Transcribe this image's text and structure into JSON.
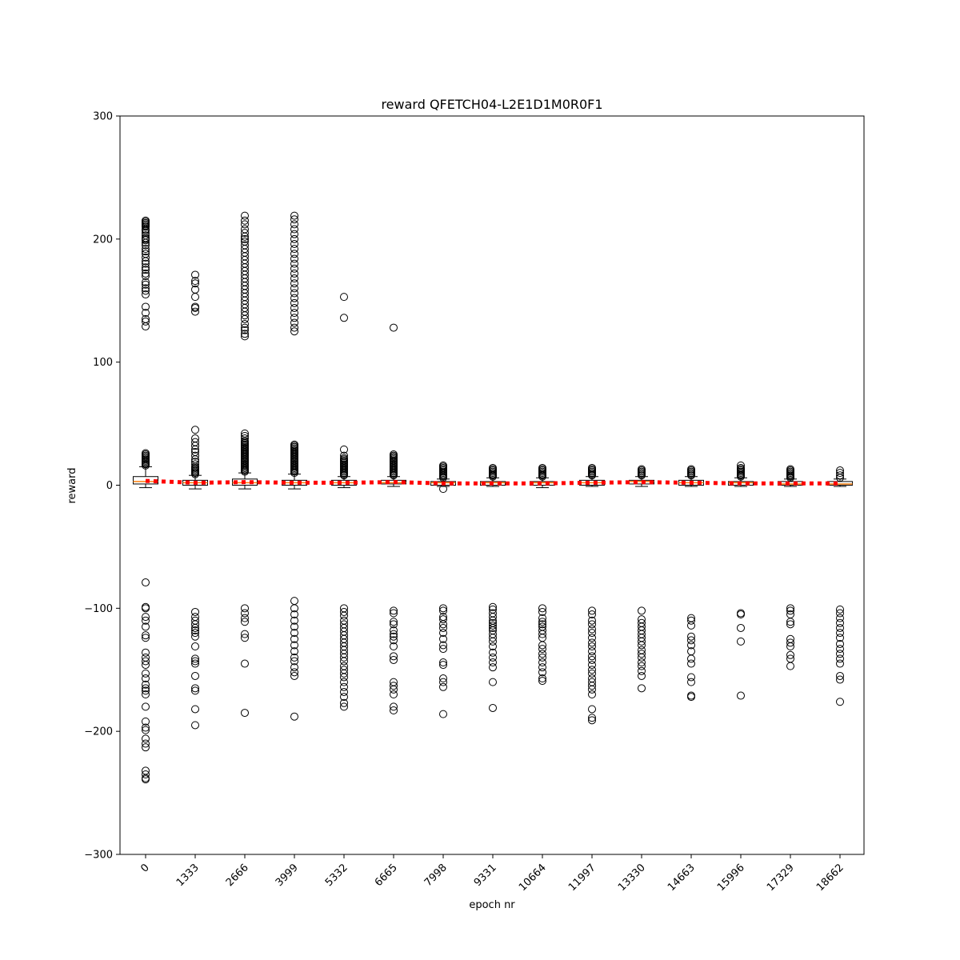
{
  "chart_data": {
    "type": "box",
    "title": "reward QFETCH04-L2E1D1M0R0F1",
    "xlabel": "epoch nr",
    "ylabel": "reward",
    "ylim": [
      -300,
      300
    ],
    "yticks": [
      -300,
      -200,
      -100,
      0,
      100,
      200,
      300
    ],
    "ytick_labels": [
      "−300",
      "−200",
      "−100",
      "0",
      "100",
      "200",
      "300"
    ],
    "categories": [
      "0",
      "1333",
      "2666",
      "3999",
      "5332",
      "6665",
      "7998",
      "9331",
      "10664",
      "11997",
      "13330",
      "14663",
      "15996",
      "17329",
      "18662"
    ],
    "colors": {
      "box": "#000000",
      "median": "#ff7f0e",
      "mean_line": "#ff0000"
    },
    "boxes": [
      {
        "q1": 1,
        "median": 3,
        "q3": 7,
        "whislo": -2,
        "whishi": 15,
        "mean": 3.5,
        "outliers": [
          16,
          17,
          18,
          19,
          20,
          21,
          22,
          23,
          24,
          25,
          26,
          129,
          133,
          135,
          140,
          145,
          155,
          158,
          160,
          163,
          165,
          170,
          172,
          175,
          177,
          180,
          182,
          185,
          188,
          190,
          192,
          195,
          197,
          199,
          200,
          201,
          203,
          205,
          207,
          208,
          210,
          211,
          212,
          213,
          214,
          215,
          -79,
          -99,
          -100,
          -107,
          -110,
          -115,
          -122,
          -124,
          -136,
          -140,
          -143,
          -146,
          -153,
          -157,
          -162,
          -165,
          -167,
          -170,
          -180,
          -192,
          -197,
          -199,
          -206,
          -210,
          -213,
          -232,
          -235,
          -238,
          -239
        ]
      },
      {
        "q1": 0,
        "median": 2,
        "q3": 4,
        "whislo": -3,
        "whishi": 8,
        "mean": 2,
        "outliers": [
          9,
          10,
          11,
          12,
          13,
          14,
          15,
          17,
          19,
          21,
          24,
          27,
          29,
          32,
          35,
          38,
          45,
          141,
          144,
          145,
          153,
          159,
          164,
          166,
          171,
          -103,
          -107,
          -110,
          -113,
          -116,
          -118,
          -120,
          -123,
          -131,
          -141,
          -143,
          -145,
          -155,
          -165,
          -167,
          -182,
          -195
        ]
      },
      {
        "q1": 0,
        "median": 2,
        "q3": 5,
        "whislo": -3,
        "whishi": 10,
        "mean": 2.5,
        "outliers": [
          11,
          12,
          13,
          14,
          15,
          16,
          17,
          18,
          19,
          20,
          21,
          22,
          23,
          24,
          25,
          26,
          27,
          28,
          29,
          30,
          31,
          32,
          33,
          34,
          35,
          36,
          38,
          40,
          42,
          121,
          123,
          126,
          128,
          131,
          135,
          138,
          141,
          144,
          147,
          150,
          153,
          156,
          159,
          162,
          165,
          168,
          171,
          174,
          177,
          180,
          183,
          186,
          189,
          192,
          195,
          198,
          200,
          202,
          205,
          208,
          212,
          215,
          219,
          -100,
          -104,
          -108,
          -111,
          -121,
          -124,
          -145,
          -185
        ]
      },
      {
        "q1": 0,
        "median": 2,
        "q3": 4,
        "whislo": -3,
        "whishi": 9,
        "mean": 2,
        "outliers": [
          10,
          11,
          12,
          13,
          14,
          15,
          16,
          17,
          18,
          19,
          20,
          21,
          22,
          23,
          24,
          25,
          26,
          27,
          28,
          29,
          30,
          31,
          32,
          33,
          125,
          128,
          132,
          136,
          140,
          144,
          148,
          152,
          156,
          160,
          164,
          168,
          172,
          176,
          180,
          184,
          188,
          192,
          196,
          200,
          204,
          208,
          212,
          216,
          219,
          -94,
          -100,
          -105,
          -110,
          -115,
          -120,
          -125,
          -130,
          -135,
          -140,
          -143,
          -148,
          -152,
          -155,
          -188
        ]
      },
      {
        "q1": 0,
        "median": 2,
        "q3": 4,
        "whislo": -2,
        "whishi": 7,
        "mean": 2,
        "outliers": [
          8,
          9,
          10,
          11,
          12,
          13,
          14,
          15,
          16,
          17,
          18,
          19,
          20,
          21,
          22,
          24,
          29,
          136,
          153,
          -100,
          -103,
          -106,
          -110,
          -113,
          -116,
          -119,
          -122,
          -125,
          -128,
          -131,
          -134,
          -137,
          -140,
          -143,
          -147,
          -150,
          -153,
          -156,
          -160,
          -164,
          -168,
          -172,
          -177,
          -180
        ]
      },
      {
        "q1": 1,
        "median": 2,
        "q3": 4,
        "whislo": -1,
        "whishi": 7,
        "mean": 2.5,
        "outliers": [
          8,
          9,
          10,
          11,
          12,
          13,
          14,
          15,
          16,
          17,
          18,
          19,
          20,
          21,
          22,
          23,
          24,
          25,
          128,
          -102,
          -104,
          -111,
          -113,
          -118,
          -121,
          -123,
          -126,
          -131,
          -139,
          -142,
          -160,
          -163,
          -166,
          -170,
          -180,
          -183
        ]
      },
      {
        "q1": 0,
        "median": 2,
        "q3": 3,
        "whislo": -1,
        "whishi": 5,
        "mean": 1.5,
        "outliers": [
          6,
          7,
          8,
          9,
          10,
          11,
          12,
          13,
          14,
          15,
          16,
          -3,
          -100,
          -102,
          -107,
          -109,
          -113,
          -116,
          -120,
          -125,
          -130,
          -133,
          -144,
          -146,
          -157,
          -160,
          -164,
          -186
        ]
      },
      {
        "q1": 0,
        "median": 2,
        "q3": 3,
        "whislo": -1,
        "whishi": 6,
        "mean": 1.5,
        "outliers": [
          7,
          8,
          9,
          10,
          11,
          12,
          13,
          14,
          -99,
          -101,
          -104,
          -107,
          -110,
          -112,
          -114,
          -116,
          -118,
          -121,
          -124,
          -127,
          -131,
          -136,
          -140,
          -144,
          -148,
          -160,
          -181
        ]
      },
      {
        "q1": 0,
        "median": 2,
        "q3": 3,
        "whislo": -2,
        "whishi": 6,
        "mean": 1.5,
        "outliers": [
          7,
          8,
          9,
          10,
          11,
          12,
          13,
          14,
          -100,
          -103,
          -108,
          -111,
          -113,
          -115,
          -118,
          -121,
          -124,
          -130,
          -133,
          -137,
          -140,
          -144,
          -148,
          -152,
          -157,
          -159
        ]
      },
      {
        "q1": 0,
        "median": 2,
        "q3": 4,
        "whislo": -1,
        "whishi": 7,
        "mean": 2,
        "outliers": [
          8,
          9,
          10,
          11,
          12,
          13,
          14,
          -102,
          -105,
          -110,
          -113,
          -117,
          -120,
          -124,
          -128,
          -131,
          -135,
          -139,
          -142,
          -146,
          -150,
          -153,
          -157,
          -160,
          -163,
          -166,
          -170,
          -182,
          -189,
          -191
        ]
      },
      {
        "q1": 1,
        "median": 3,
        "q3": 4,
        "whislo": -1,
        "whishi": 7,
        "mean": 2.5,
        "outliers": [
          8,
          9,
          10,
          11,
          12,
          13,
          -102,
          -109,
          -112,
          -115,
          -118,
          -121,
          -124,
          -127,
          -130,
          -134,
          -137,
          -140,
          -144,
          -147,
          -151,
          -155,
          -165
        ]
      },
      {
        "q1": 0,
        "median": 2,
        "q3": 4,
        "whislo": -1,
        "whishi": 7,
        "mean": 2,
        "outliers": [
          8,
          9,
          10,
          11,
          12,
          13,
          -108,
          -110,
          -114,
          -123,
          -126,
          -130,
          -135,
          -141,
          -145,
          -156,
          -160,
          -171,
          -172
        ]
      },
      {
        "q1": 0,
        "median": 2,
        "q3": 3,
        "whislo": -1,
        "whishi": 6,
        "mean": 1.5,
        "outliers": [
          7,
          8,
          9,
          10,
          11,
          12,
          13,
          14,
          16,
          -104,
          -105,
          -116,
          -127,
          -171
        ]
      },
      {
        "q1": 0,
        "median": 1,
        "q3": 3,
        "whislo": -1,
        "whishi": 5,
        "mean": 1.5,
        "outliers": [
          6,
          7,
          8,
          9,
          10,
          11,
          12,
          13,
          -100,
          -102,
          -105,
          -111,
          -113,
          -125,
          -128,
          -131,
          -138,
          -141,
          -147
        ]
      },
      {
        "q1": 0,
        "median": 1,
        "q3": 3,
        "whislo": -1,
        "whishi": 5,
        "mean": 1.5,
        "outliers": [
          6,
          8,
          10,
          12,
          -101,
          -104,
          -108,
          -112,
          -116,
          -120,
          -124,
          -129,
          -133,
          -137,
          -141,
          -145,
          -155,
          -158,
          -176
        ]
      }
    ]
  }
}
